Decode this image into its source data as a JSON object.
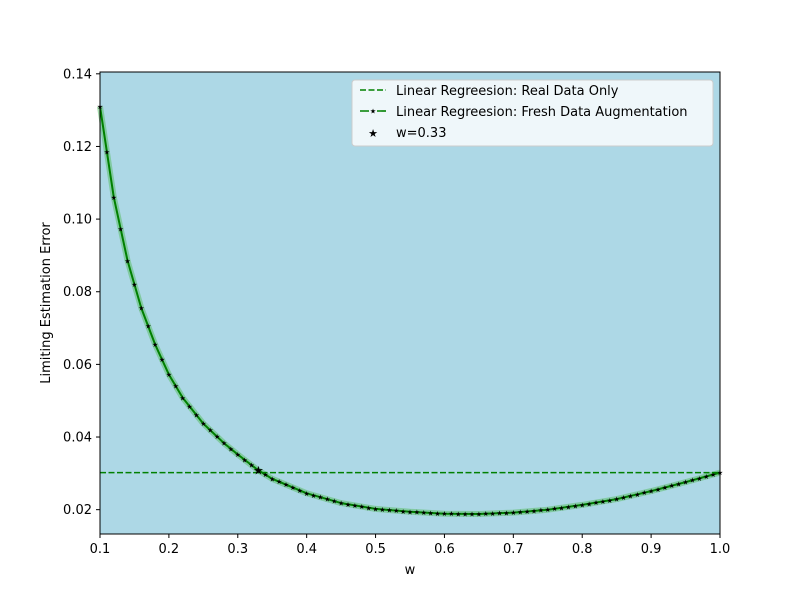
{
  "chart_data": {
    "type": "line",
    "title": "",
    "xlabel": "w",
    "ylabel": "Limiting Estimation Error",
    "xlim": [
      0.1,
      1.0
    ],
    "ylim": [
      0.0133,
      0.1405
    ],
    "xticks": [
      0.1,
      0.2,
      0.3,
      0.4,
      0.5,
      0.6,
      0.7,
      0.8,
      0.9,
      1.0
    ],
    "xtick_labels": [
      "0.1",
      "0.2",
      "0.3",
      "0.4",
      "0.5",
      "0.6",
      "0.7",
      "0.8",
      "0.9",
      "1.0"
    ],
    "yticks": [
      0.02,
      0.04,
      0.06,
      0.08,
      0.1,
      0.12,
      0.14
    ],
    "ytick_labels": [
      "0.02",
      "0.04",
      "0.06",
      "0.08",
      "0.10",
      "0.12",
      "0.14"
    ],
    "grid": false,
    "legend_position": "top-right",
    "plot_background": "#add8e6",
    "series": [
      {
        "name": "Linear Regreesion: Real Data Only",
        "style": "dashed",
        "color": "#008000",
        "x": [
          0.1,
          1.0
        ],
        "y": [
          0.0302,
          0.0302
        ]
      },
      {
        "name": "Linear Regreesion: Fresh Data Augmentation",
        "style": "solid-with-star-markers",
        "color": "#008000",
        "x": [
          0.1,
          0.12,
          0.14,
          0.16,
          0.18,
          0.2,
          0.22,
          0.25,
          0.28,
          0.3,
          0.33,
          0.35,
          0.4,
          0.45,
          0.5,
          0.55,
          0.6,
          0.65,
          0.7,
          0.75,
          0.8,
          0.85,
          0.9,
          0.95,
          1.0
        ],
        "y": [
          0.131,
          0.106,
          0.0885,
          0.0755,
          0.0655,
          0.0572,
          0.0508,
          0.0437,
          0.0383,
          0.0352,
          0.0308,
          0.0285,
          0.0245,
          0.0218,
          0.0202,
          0.0194,
          0.0189,
          0.0188,
          0.0192,
          0.02,
          0.0213,
          0.0229,
          0.0251,
          0.0276,
          0.0302
        ]
      }
    ],
    "highlight_point": {
      "label": "w=0.33",
      "x": 0.33,
      "y": 0.0308,
      "marker": "star",
      "color": "#000000"
    }
  }
}
